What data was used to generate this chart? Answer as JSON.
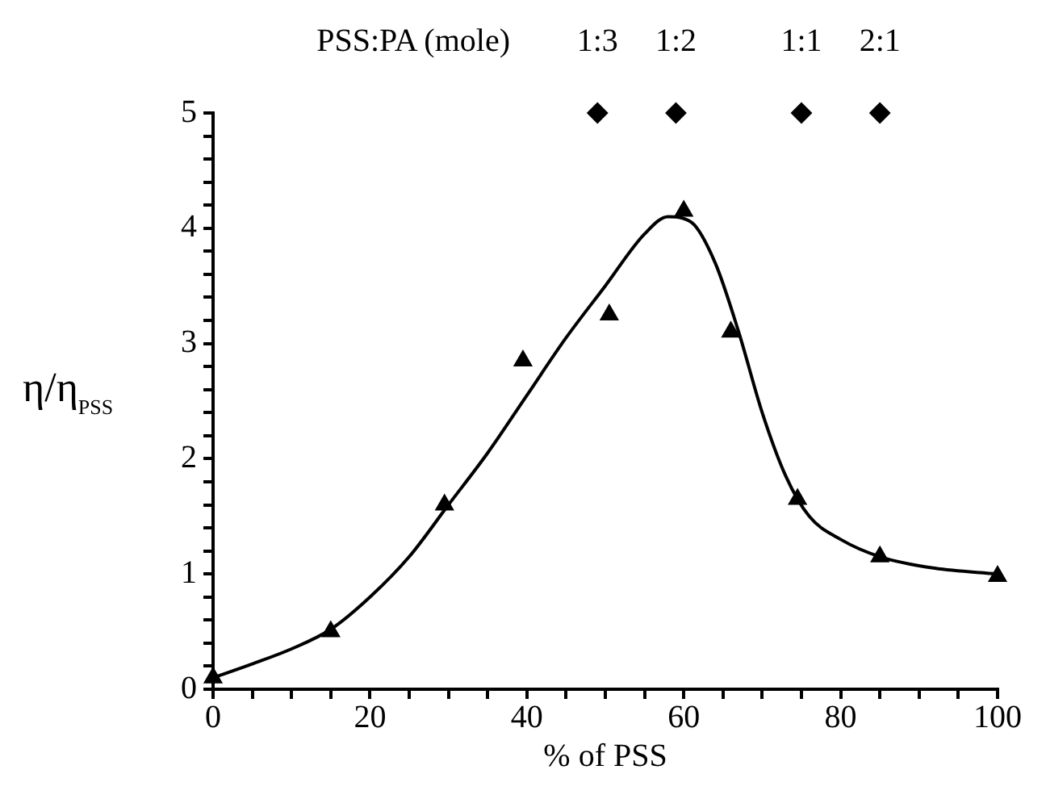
{
  "chart_data": {
    "type": "scatter",
    "xlabel": "% of PSS",
    "ylabel": "η/η$_{PSS}$",
    "annotations": [
      "PSS:PA (mole)",
      {
        "text": "1:3",
        "x": 49,
        "y": 5
      },
      {
        "text": "1:2",
        "x": 59,
        "y": 5
      },
      {
        "text": "1:1",
        "x": 75,
        "y": 5
      },
      {
        "text": "2:1",
        "x": 85,
        "y": 5
      }
    ],
    "xlim": [
      0,
      100
    ],
    "ylim": [
      0,
      5
    ],
    "xticks": [
      0,
      {
        "value": 5,
        "label": null
      },
      {
        "value": 10,
        "label": null
      },
      {
        "value": 15,
        "label": null
      },
      20,
      {
        "value": 25,
        "label": null
      },
      {
        "value": 30,
        "label": null
      },
      {
        "value": 35,
        "label": null
      },
      40,
      {
        "value": 45,
        "label": null
      },
      {
        "value": 50,
        "label": null
      },
      {
        "value": 55,
        "label": null
      },
      60,
      {
        "value": 65,
        "label": null
      },
      {
        "value": 70,
        "label": null
      },
      {
        "value": 75,
        "label": null
      },
      80,
      {
        "value": 85,
        "label": null
      },
      {
        "value": 90,
        "label": null
      },
      {
        "value": 95,
        "label": null
      },
      100
    ],
    "yticks": [
      0,
      {
        "value": 0.2,
        "label": null
      },
      {
        "value": 0.4,
        "label": null
      },
      {
        "value": 0.6,
        "label": null
      },
      {
        "value": 0.8,
        "label": null
      },
      1,
      {
        "value": 1.2,
        "label": null
      },
      {
        "value": 1.4,
        "label": null
      },
      {
        "value": 1.6,
        "label": null
      },
      {
        "value": 1.8,
        "label": null
      },
      2,
      {
        "value": 2.2,
        "label": null
      },
      {
        "value": 2.4,
        "label": null
      },
      {
        "value": 2.6,
        "label": null
      },
      {
        "value": 2.8,
        "label": null
      },
      3,
      {
        "value": 3.2,
        "label": null
      },
      {
        "value": 3.4,
        "label": null
      },
      {
        "value": 3.6,
        "label": null
      },
      {
        "value": 3.8,
        "label": null
      },
      4,
      {
        "value": 4.2,
        "label": null
      },
      {
        "value": 4.4,
        "label": null
      },
      {
        "value": 4.6,
        "label": null
      },
      {
        "value": 4.8,
        "label": null
      },
      5
    ],
    "grid": false,
    "legend": false,
    "series": [
      {
        "type": "line",
        "color": "#000000",
        "marker": "none",
        "x": [
          0,
          5,
          10,
          15,
          20,
          25,
          30,
          35,
          40,
          45,
          50,
          55,
          58,
          61,
          64,
          67,
          70,
          73,
          76,
          80,
          85,
          92,
          100
        ],
        "values": [
          0.1,
          0.22,
          0.35,
          0.52,
          0.8,
          1.15,
          1.6,
          2.05,
          2.55,
          3.05,
          3.5,
          3.95,
          4.1,
          4.05,
          3.7,
          3.1,
          2.4,
          1.85,
          1.5,
          1.3,
          1.15,
          1.05,
          1.0
        ]
      },
      {
        "color": "#000000",
        "marker": "triangle",
        "x": [
          0,
          15,
          29.5,
          39.5,
          50.5,
          60,
          66,
          74.5,
          85,
          100
        ],
        "values": [
          0.1,
          0.5,
          1.6,
          2.85,
          3.25,
          4.15,
          3.1,
          1.65,
          1.15,
          0.98
        ]
      },
      {
        "color": "#000000",
        "marker": "diamond",
        "x": [
          49,
          59,
          75,
          85
        ],
        "values": [
          5,
          5,
          5,
          5
        ]
      }
    ]
  }
}
